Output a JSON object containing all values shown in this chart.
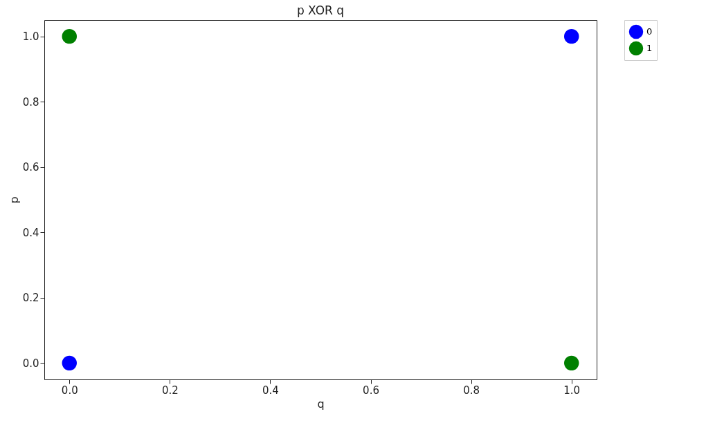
{
  "chart_data": {
    "type": "scatter",
    "title": "p XOR q",
    "xlabel": "q",
    "ylabel": "p",
    "series": [
      {
        "name": "0",
        "color": "#0000ff",
        "values": [
          0,
          1
        ]
      },
      {
        "name": "1",
        "color": "#008000",
        "values": [
          1,
          0
        ]
      }
    ],
    "x": [
      0,
      1
    ],
    "xlim": [
      -0.05,
      1.05
    ],
    "ylim": [
      -0.05,
      1.05
    ],
    "xticks": [
      {
        "value": 0,
        "label": "0.0"
      },
      {
        "value": 0.2,
        "label": "0.2"
      },
      {
        "value": 0.4,
        "label": "0.4"
      },
      {
        "value": 0.6,
        "label": "0.6"
      },
      {
        "value": 0.8,
        "label": "0.8"
      },
      {
        "value": 1,
        "label": "1.0"
      }
    ],
    "yticks": [
      {
        "value": 0,
        "label": "0.0"
      },
      {
        "value": 0.2,
        "label": "0.2"
      },
      {
        "value": 0.4,
        "label": "0.4"
      },
      {
        "value": 0.6,
        "label": "0.6"
      },
      {
        "value": 0.8,
        "label": "0.8"
      },
      {
        "value": 1,
        "label": "1.0"
      }
    ],
    "legend": "top right",
    "marker": "circle"
  }
}
